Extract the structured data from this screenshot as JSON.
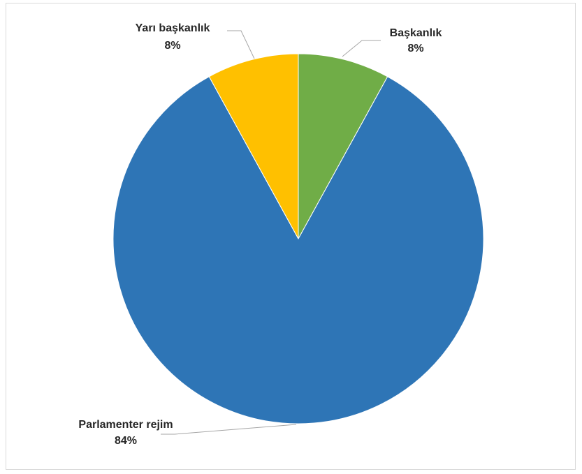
{
  "chart_data": {
    "type": "pie",
    "title": "",
    "slices": [
      {
        "name": "Başkanlık",
        "value": 8,
        "label": "8%",
        "color": "#70AD47"
      },
      {
        "name": "Parlamenter rejim",
        "value": 84,
        "label": "84%",
        "color": "#2E75B6"
      },
      {
        "name": "Yarı başkanlık",
        "value": 8,
        "label": "8%",
        "color": "#FFC000"
      }
    ],
    "start_angle": "12 o'clock",
    "direction": "clockwise",
    "legend": "none",
    "data_labels": "outside with leader lines"
  }
}
